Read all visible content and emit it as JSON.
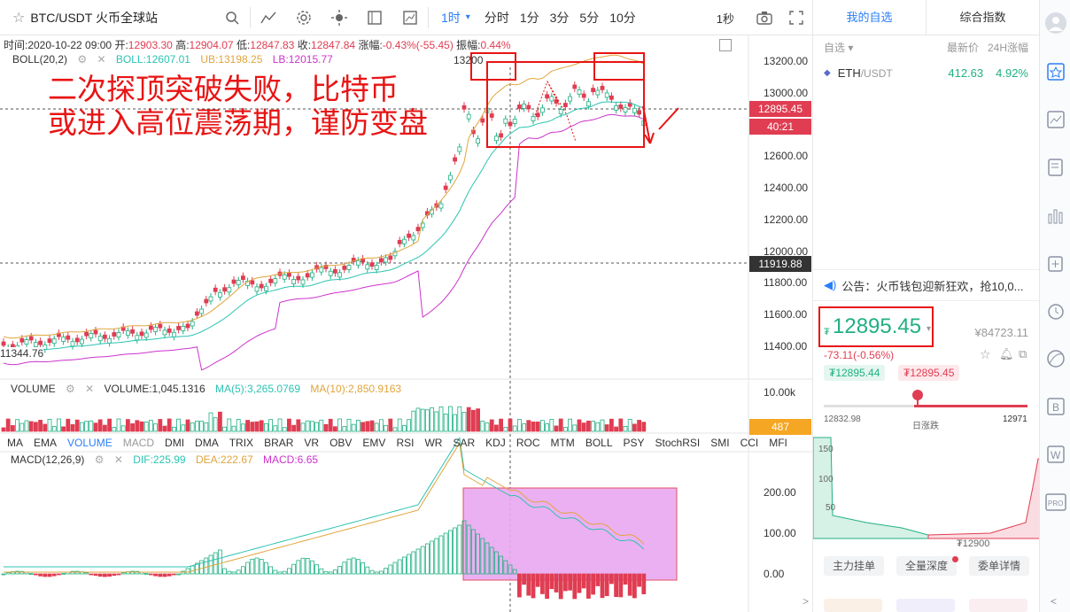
{
  "toolbar": {
    "pair": "BTC/USDT 火币全球站",
    "intervals": [
      "1时",
      "分时",
      "1分",
      "3分",
      "5分",
      "10分"
    ],
    "active_interval": "1时",
    "right_label": "1秒"
  },
  "ohlc": {
    "time": "时间:2020-10-22 09:00",
    "open_label": "开:",
    "open": "12903.30",
    "high_label": "高:",
    "high": "12904.07",
    "low_label": "低:",
    "low": "12847.83",
    "close_label": "收:",
    "close": "12847.84",
    "change_label": "涨幅:",
    "change": "-0.43%(-55.45)",
    "amp_label": "振幅:",
    "amp": "0.44%"
  },
  "boll": {
    "name": "BOLL(20,2)",
    "boll": "BOLL:12607.01",
    "ub": "UB:13198.25",
    "lb": "LB:12015.77",
    "peak": "13200"
  },
  "annotation": {
    "line1": "二次探顶突破失败，比特币",
    "line2": "或进入高位震荡期，谨防变盘"
  },
  "price_axis": [
    "13200.00",
    "13000.00",
    "12895.45",
    "12600.00",
    "12400.00",
    "12200.00",
    "12000.00",
    "11919.88",
    "11800.00",
    "11600.00",
    "11400.00"
  ],
  "price_tags": {
    "last": "12895.45",
    "countdown": "40:21",
    "crosshair": "11919.88",
    "low_marker": "11344.76"
  },
  "volume": {
    "name": "VOLUME",
    "value": "VOLUME:1,045.1316",
    "ma5": "MA(5):3,265.0769",
    "ma10": "MA(10):2,850.9163",
    "axis_top": "10.00k",
    "tag": "487"
  },
  "indicator_tabs": [
    "MA",
    "EMA",
    "VOLUME",
    "MACD",
    "DMI",
    "DMA",
    "TRIX",
    "BRAR",
    "VR",
    "OBV",
    "EMV",
    "RSI",
    "WR",
    "SAR",
    "KDJ",
    "ROC",
    "MTM",
    "BOLL",
    "PSY",
    "StochRSI",
    "SMI",
    "CCI",
    "MFI"
  ],
  "macd": {
    "name": "MACD(12,26,9)",
    "dif": "DIF:225.99",
    "dea": "DEA:222.67",
    "macd": "MACD:6.65",
    "axis": [
      "200.00",
      "100.00",
      "0.00"
    ]
  },
  "panel": {
    "tab_fav": "我的自选",
    "tab_index": "综合指数",
    "list_head_left": "自选",
    "list_head_price": "最新价",
    "list_head_change": "24H涨幅",
    "rows": [
      {
        "sym": "ETH",
        "quote": "/USDT",
        "price": "412.63",
        "change": "4.92%"
      }
    ],
    "notice": "公告：火币钱包迎新狂欢，抢10,0...",
    "big_price": "12895.45",
    "currency": "₮",
    "cny": "¥84723.11",
    "chg": "-73.11(-0.56%)",
    "bid": "₮12895.44",
    "ask": "₮12895.45",
    "range_low": "12832.98",
    "range_mid": "日涨跌",
    "range_high": "12971",
    "depth_labels": [
      "150",
      "100",
      "50"
    ],
    "depth_mid": "₮12900",
    "buttons": [
      "主力挂单",
      "全量深度",
      "委单详情"
    ]
  },
  "colors": {
    "up": "#20b083",
    "down": "#e03d52",
    "boll_mid": "#e0a53c",
    "boll_lower": "#cc33cc",
    "boll_upper_teal": "#2cc3b3",
    "annotation": "#e81414",
    "accent": "#2a7ef8"
  }
}
